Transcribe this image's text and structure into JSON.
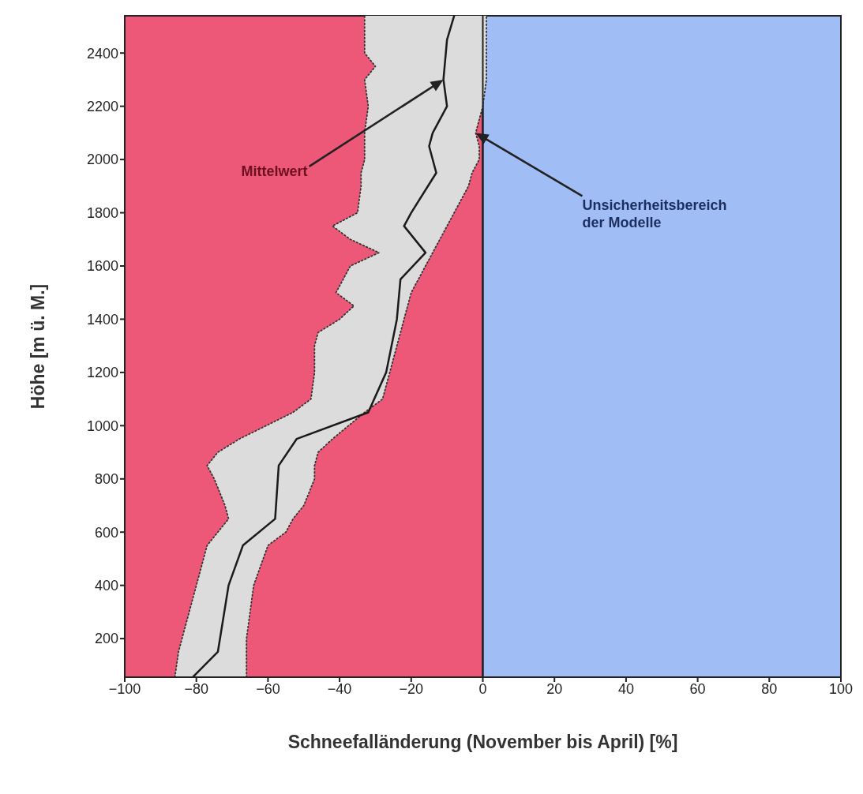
{
  "chart_data": {
    "type": "line",
    "xlabel": "Schneefalländerung (November bis April) [%]",
    "ylabel": "Höhe [m ü. M.]",
    "xlim": [
      -100,
      100
    ],
    "xticks": [
      {
        "value": -100,
        "label": "−100"
      },
      {
        "value": -80,
        "label": "−80"
      },
      {
        "value": -60,
        "label": "−60"
      },
      {
        "value": -40,
        "label": "−40"
      },
      {
        "value": -20,
        "label": "−20"
      },
      0,
      20,
      40,
      60,
      80,
      100
    ],
    "ylim": [
      55,
      2540
    ],
    "yticks": [
      200,
      400,
      600,
      800,
      1000,
      1200,
      1400,
      1600,
      1800,
      2000,
      2200,
      2400
    ],
    "grid": false,
    "legend": false,
    "bands": [
      {
        "axis": "x",
        "from": -100,
        "to": 0,
        "color": "#ee5878"
      },
      {
        "axis": "x",
        "from": 0,
        "to": 100,
        "color": "#a0bdf6"
      }
    ],
    "ref_lines": [
      {
        "axis": "x",
        "value": 0,
        "color": "#222222"
      }
    ],
    "series": [
      {
        "color": "#333333",
        "line_style": "dotted",
        "x": [
          -86,
          -85,
          -84,
          -80,
          -77,
          -74,
          -71,
          -72,
          -75,
          -77,
          -74,
          -68,
          -53,
          -48,
          -47,
          -47,
          -46,
          -40,
          -36,
          -41,
          -39,
          -37,
          -29,
          -37,
          -42,
          -35,
          -34,
          -34,
          -33,
          -33,
          -33,
          -32,
          -33,
          -30,
          -33,
          -33,
          -33
        ],
        "values": [
          55,
          150,
          200,
          400,
          550,
          600,
          650,
          700,
          800,
          850,
          900,
          950,
          1050,
          1100,
          1200,
          1300,
          1350,
          1400,
          1450,
          1500,
          1550,
          1600,
          1650,
          1700,
          1750,
          1800,
          1900,
          1950,
          2000,
          2050,
          2100,
          2200,
          2300,
          2350,
          2400,
          2450,
          2540
        ]
      },
      {
        "color": "#333333",
        "line_style": "dotted",
        "x": [
          -66,
          -66,
          -66,
          -64,
          -60,
          -55,
          -53,
          -50,
          -47,
          -47,
          -46,
          -42,
          -33,
          -28,
          -26,
          -24,
          -23,
          -22,
          -21,
          -20,
          -18,
          -16,
          -14,
          -12,
          -10,
          -8,
          -4,
          -3,
          -1,
          -1,
          -2,
          0,
          1,
          1,
          1,
          1,
          1
        ],
        "values": [
          55,
          150,
          200,
          400,
          550,
          600,
          650,
          700,
          800,
          850,
          900,
          950,
          1050,
          1100,
          1200,
          1300,
          1350,
          1400,
          1450,
          1500,
          1550,
          1600,
          1650,
          1700,
          1750,
          1800,
          1900,
          1950,
          2000,
          2050,
          2100,
          2200,
          2300,
          2350,
          2400,
          2450,
          2540
        ]
      },
      {
        "color": "#1a1a1a",
        "line_style": "solid",
        "marker": "none",
        "x": [
          -81,
          -74,
          -71,
          -67,
          -58,
          -57,
          -52,
          -32,
          -27,
          -24,
          -23,
          -16,
          -22,
          -20,
          -13,
          -15,
          -14,
          -10,
          -11,
          -10,
          -8
        ],
        "values": [
          55,
          150,
          400,
          550,
          650,
          850,
          950,
          1050,
          1200,
          1400,
          1550,
          1650,
          1750,
          1800,
          1950,
          2050,
          2100,
          2200,
          2300,
          2450,
          2540
        ]
      }
    ],
    "annotations": [
      "Mittelwert",
      "Unsicherheitsbereich\nder Modelle"
    ]
  }
}
